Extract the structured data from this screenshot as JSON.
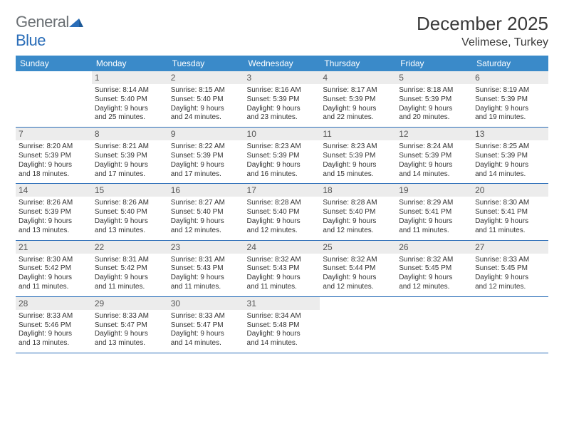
{
  "brand": {
    "part1": "General",
    "part2": "Blue"
  },
  "title": "December 2025",
  "location": "Velimese, Turkey",
  "header_bg": "#3a8ac9",
  "border_color": "#2a6db8",
  "daynum_bg": "#ececec",
  "weekdays": [
    "Sunday",
    "Monday",
    "Tuesday",
    "Wednesday",
    "Thursday",
    "Friday",
    "Saturday"
  ],
  "weeks": [
    [
      null,
      {
        "n": "1",
        "sr": "Sunrise: 8:14 AM",
        "ss": "Sunset: 5:40 PM",
        "d1": "Daylight: 9 hours",
        "d2": "and 25 minutes."
      },
      {
        "n": "2",
        "sr": "Sunrise: 8:15 AM",
        "ss": "Sunset: 5:40 PM",
        "d1": "Daylight: 9 hours",
        "d2": "and 24 minutes."
      },
      {
        "n": "3",
        "sr": "Sunrise: 8:16 AM",
        "ss": "Sunset: 5:39 PM",
        "d1": "Daylight: 9 hours",
        "d2": "and 23 minutes."
      },
      {
        "n": "4",
        "sr": "Sunrise: 8:17 AM",
        "ss": "Sunset: 5:39 PM",
        "d1": "Daylight: 9 hours",
        "d2": "and 22 minutes."
      },
      {
        "n": "5",
        "sr": "Sunrise: 8:18 AM",
        "ss": "Sunset: 5:39 PM",
        "d1": "Daylight: 9 hours",
        "d2": "and 20 minutes."
      },
      {
        "n": "6",
        "sr": "Sunrise: 8:19 AM",
        "ss": "Sunset: 5:39 PM",
        "d1": "Daylight: 9 hours",
        "d2": "and 19 minutes."
      }
    ],
    [
      {
        "n": "7",
        "sr": "Sunrise: 8:20 AM",
        "ss": "Sunset: 5:39 PM",
        "d1": "Daylight: 9 hours",
        "d2": "and 18 minutes."
      },
      {
        "n": "8",
        "sr": "Sunrise: 8:21 AM",
        "ss": "Sunset: 5:39 PM",
        "d1": "Daylight: 9 hours",
        "d2": "and 17 minutes."
      },
      {
        "n": "9",
        "sr": "Sunrise: 8:22 AM",
        "ss": "Sunset: 5:39 PM",
        "d1": "Daylight: 9 hours",
        "d2": "and 17 minutes."
      },
      {
        "n": "10",
        "sr": "Sunrise: 8:23 AM",
        "ss": "Sunset: 5:39 PM",
        "d1": "Daylight: 9 hours",
        "d2": "and 16 minutes."
      },
      {
        "n": "11",
        "sr": "Sunrise: 8:23 AM",
        "ss": "Sunset: 5:39 PM",
        "d1": "Daylight: 9 hours",
        "d2": "and 15 minutes."
      },
      {
        "n": "12",
        "sr": "Sunrise: 8:24 AM",
        "ss": "Sunset: 5:39 PM",
        "d1": "Daylight: 9 hours",
        "d2": "and 14 minutes."
      },
      {
        "n": "13",
        "sr": "Sunrise: 8:25 AM",
        "ss": "Sunset: 5:39 PM",
        "d1": "Daylight: 9 hours",
        "d2": "and 14 minutes."
      }
    ],
    [
      {
        "n": "14",
        "sr": "Sunrise: 8:26 AM",
        "ss": "Sunset: 5:39 PM",
        "d1": "Daylight: 9 hours",
        "d2": "and 13 minutes."
      },
      {
        "n": "15",
        "sr": "Sunrise: 8:26 AM",
        "ss": "Sunset: 5:40 PM",
        "d1": "Daylight: 9 hours",
        "d2": "and 13 minutes."
      },
      {
        "n": "16",
        "sr": "Sunrise: 8:27 AM",
        "ss": "Sunset: 5:40 PM",
        "d1": "Daylight: 9 hours",
        "d2": "and 12 minutes."
      },
      {
        "n": "17",
        "sr": "Sunrise: 8:28 AM",
        "ss": "Sunset: 5:40 PM",
        "d1": "Daylight: 9 hours",
        "d2": "and 12 minutes."
      },
      {
        "n": "18",
        "sr": "Sunrise: 8:28 AM",
        "ss": "Sunset: 5:40 PM",
        "d1": "Daylight: 9 hours",
        "d2": "and 12 minutes."
      },
      {
        "n": "19",
        "sr": "Sunrise: 8:29 AM",
        "ss": "Sunset: 5:41 PM",
        "d1": "Daylight: 9 hours",
        "d2": "and 11 minutes."
      },
      {
        "n": "20",
        "sr": "Sunrise: 8:30 AM",
        "ss": "Sunset: 5:41 PM",
        "d1": "Daylight: 9 hours",
        "d2": "and 11 minutes."
      }
    ],
    [
      {
        "n": "21",
        "sr": "Sunrise: 8:30 AM",
        "ss": "Sunset: 5:42 PM",
        "d1": "Daylight: 9 hours",
        "d2": "and 11 minutes."
      },
      {
        "n": "22",
        "sr": "Sunrise: 8:31 AM",
        "ss": "Sunset: 5:42 PM",
        "d1": "Daylight: 9 hours",
        "d2": "and 11 minutes."
      },
      {
        "n": "23",
        "sr": "Sunrise: 8:31 AM",
        "ss": "Sunset: 5:43 PM",
        "d1": "Daylight: 9 hours",
        "d2": "and 11 minutes."
      },
      {
        "n": "24",
        "sr": "Sunrise: 8:32 AM",
        "ss": "Sunset: 5:43 PM",
        "d1": "Daylight: 9 hours",
        "d2": "and 11 minutes."
      },
      {
        "n": "25",
        "sr": "Sunrise: 8:32 AM",
        "ss": "Sunset: 5:44 PM",
        "d1": "Daylight: 9 hours",
        "d2": "and 12 minutes."
      },
      {
        "n": "26",
        "sr": "Sunrise: 8:32 AM",
        "ss": "Sunset: 5:45 PM",
        "d1": "Daylight: 9 hours",
        "d2": "and 12 minutes."
      },
      {
        "n": "27",
        "sr": "Sunrise: 8:33 AM",
        "ss": "Sunset: 5:45 PM",
        "d1": "Daylight: 9 hours",
        "d2": "and 12 minutes."
      }
    ],
    [
      {
        "n": "28",
        "sr": "Sunrise: 8:33 AM",
        "ss": "Sunset: 5:46 PM",
        "d1": "Daylight: 9 hours",
        "d2": "and 13 minutes."
      },
      {
        "n": "29",
        "sr": "Sunrise: 8:33 AM",
        "ss": "Sunset: 5:47 PM",
        "d1": "Daylight: 9 hours",
        "d2": "and 13 minutes."
      },
      {
        "n": "30",
        "sr": "Sunrise: 8:33 AM",
        "ss": "Sunset: 5:47 PM",
        "d1": "Daylight: 9 hours",
        "d2": "and 14 minutes."
      },
      {
        "n": "31",
        "sr": "Sunrise: 8:34 AM",
        "ss": "Sunset: 5:48 PM",
        "d1": "Daylight: 9 hours",
        "d2": "and 14 minutes."
      },
      null,
      null,
      null
    ]
  ]
}
